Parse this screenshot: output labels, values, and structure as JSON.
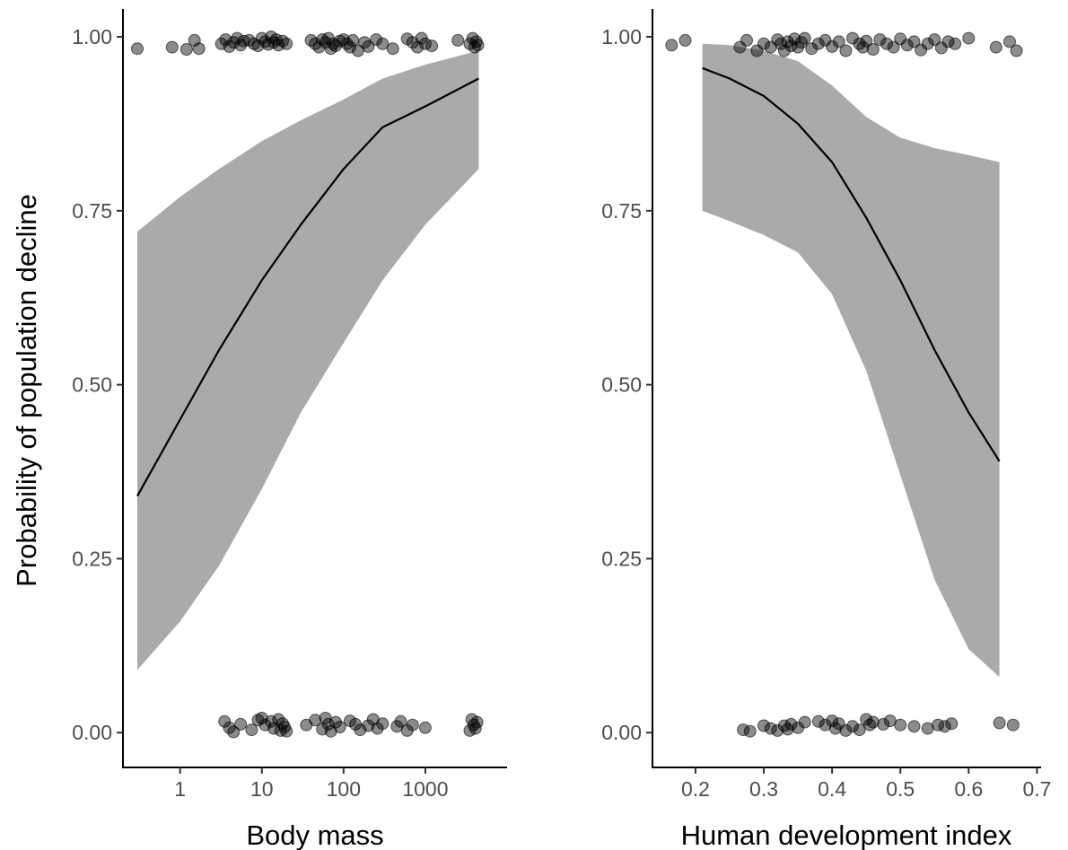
{
  "chart_data": [
    {
      "type": "line",
      "xlabel": "Body mass",
      "ylabel": "Probability of population decline",
      "x_scale": "log10",
      "xlim": [
        0.2,
        10000
      ],
      "ylim": [
        -0.05,
        1.04
      ],
      "grid": false,
      "x_ticks": [
        1,
        10,
        100,
        1000
      ],
      "x_tick_labels": [
        "1",
        "10",
        "100",
        "1000"
      ],
      "y_ticks": [
        0,
        0.25,
        0.5,
        0.75,
        1
      ],
      "y_tick_labels": [
        "0.00",
        "0.25",
        "0.50",
        "0.75",
        "1.00"
      ],
      "series": [
        {
          "x": [
            0.3,
            1,
            3,
            10,
            30,
            100,
            300,
            1000,
            4500
          ],
          "y": [
            0.34,
            0.45,
            0.55,
            0.65,
            0.73,
            0.81,
            0.87,
            0.9,
            0.94
          ],
          "lower": [
            0.09,
            0.16,
            0.24,
            0.35,
            0.46,
            0.56,
            0.65,
            0.73,
            0.81
          ],
          "upper": [
            0.72,
            0.77,
            0.81,
            0.85,
            0.88,
            0.91,
            0.94,
            0.96,
            0.98
          ]
        }
      ],
      "points_y1": {
        "x": [
          0.3,
          0.8,
          1.2,
          1.5,
          1.7,
          3.2,
          3.6,
          4,
          4.5,
          5,
          5.5,
          6,
          7,
          8,
          9,
          10,
          11,
          12,
          13,
          14,
          15,
          16,
          18,
          20,
          40,
          45,
          50,
          55,
          60,
          65,
          70,
          75,
          80,
          90,
          100,
          110,
          120,
          130,
          150,
          180,
          200,
          250,
          300,
          400,
          600,
          700,
          800,
          900,
          1000,
          1200,
          2500,
          3500,
          3800,
          4000,
          4200,
          4400
        ],
        "y": [
          0.983,
          0.985,
          0.982,
          0.995,
          0.983,
          0.99,
          0.996,
          0.986,
          0.992,
          0.998,
          0.988,
          0.994,
          0.995,
          0.99,
          0.987,
          0.998,
          0.993,
          0.989,
          1,
          0.992,
          0.996,
          0.988,
          0.994,
          0.99,
          0.995,
          0.99,
          0.985,
          0.996,
          0.992,
          0.998,
          0.983,
          0.99,
          0.987,
          0.994,
          0.996,
          0.99,
          0.985,
          0.995,
          0.98,
          0.992,
          0.986,
          0.996,
          0.99,
          0.983,
          0.997,
          0.992,
          0.985,
          0.998,
          0.99,
          0.987,
          0.995,
          0.99,
          0.998,
          0.985,
          0.993,
          0.988
        ]
      },
      "points_y0": {
        "x": [
          3.5,
          4,
          4.5,
          5.5,
          7.5,
          9,
          10,
          11,
          13,
          14,
          16,
          17,
          18,
          19,
          20,
          35,
          45,
          55,
          60,
          65,
          70,
          80,
          90,
          120,
          140,
          160,
          200,
          230,
          260,
          300,
          450,
          500,
          600,
          700,
          1000,
          3500,
          3700,
          3900,
          4100,
          4300
        ],
        "y": [
          0.016,
          0.007,
          0.001,
          0.012,
          0.004,
          0.018,
          0.021,
          0.011,
          0.016,
          0.006,
          0.019,
          0.003,
          0.013,
          0.008,
          0.002,
          0.011,
          0.018,
          0.005,
          0.021,
          0.012,
          0.002,
          0.015,
          0.008,
          0.017,
          0.012,
          0.004,
          0.01,
          0.019,
          0.006,
          0.013,
          0.009,
          0.016,
          0.003,
          0.011,
          0.007,
          0.003,
          0.019,
          0.011,
          0.006,
          0.015
        ]
      }
    },
    {
      "type": "line",
      "xlabel": "Human development index",
      "ylabel": "",
      "x_scale": "linear",
      "xlim": [
        0.137,
        0.706
      ],
      "ylim": [
        -0.05,
        1.04
      ],
      "grid": false,
      "x_ticks": [
        0.2,
        0.3,
        0.4,
        0.5,
        0.6,
        0.7
      ],
      "x_tick_labels": [
        "0.2",
        "0.3",
        "0.4",
        "0.5",
        "0.6",
        "0.7"
      ],
      "y_ticks": [
        0,
        0.25,
        0.5,
        0.75,
        1
      ],
      "y_tick_labels": [
        "0.00",
        "0.25",
        "0.50",
        "0.75",
        "1.00"
      ],
      "series": [
        {
          "x": [
            0.21,
            0.25,
            0.3,
            0.35,
            0.4,
            0.45,
            0.5,
            0.55,
            0.6,
            0.645
          ],
          "y": [
            0.955,
            0.94,
            0.915,
            0.875,
            0.82,
            0.74,
            0.65,
            0.55,
            0.46,
            0.39
          ],
          "lower": [
            0.75,
            0.735,
            0.715,
            0.69,
            0.63,
            0.52,
            0.37,
            0.22,
            0.12,
            0.08
          ],
          "upper": [
            0.99,
            0.988,
            0.98,
            0.965,
            0.93,
            0.885,
            0.855,
            0.84,
            0.83,
            0.82
          ]
        }
      ],
      "points_y1": {
        "x": [
          0.165,
          0.185,
          0.265,
          0.275,
          0.29,
          0.3,
          0.31,
          0.32,
          0.325,
          0.33,
          0.335,
          0.34,
          0.345,
          0.35,
          0.355,
          0.36,
          0.37,
          0.38,
          0.39,
          0.4,
          0.41,
          0.42,
          0.43,
          0.44,
          0.445,
          0.45,
          0.46,
          0.47,
          0.48,
          0.49,
          0.5,
          0.51,
          0.52,
          0.53,
          0.54,
          0.55,
          0.56,
          0.57,
          0.58,
          0.6,
          0.64,
          0.66,
          0.67
        ],
        "y": [
          0.988,
          0.995,
          0.985,
          0.995,
          0.98,
          0.99,
          0.985,
          0.996,
          0.99,
          0.98,
          0.993,
          0.987,
          0.997,
          0.985,
          0.992,
          0.998,
          0.983,
          0.99,
          0.995,
          0.986,
          0.993,
          0.98,
          0.998,
          0.99,
          0.985,
          0.994,
          0.982,
          0.996,
          0.99,
          0.985,
          0.997,
          0.988,
          0.993,
          0.981,
          0.99,
          0.996,
          0.984,
          0.993,
          0.99,
          0.998,
          0.985,
          0.993,
          0.98
        ]
      },
      "points_y0": {
        "x": [
          0.27,
          0.28,
          0.3,
          0.31,
          0.32,
          0.33,
          0.335,
          0.34,
          0.35,
          0.36,
          0.38,
          0.39,
          0.4,
          0.405,
          0.41,
          0.42,
          0.43,
          0.44,
          0.45,
          0.455,
          0.46,
          0.475,
          0.485,
          0.5,
          0.52,
          0.54,
          0.555,
          0.565,
          0.575,
          0.645,
          0.665
        ],
        "y": [
          0.004,
          0.002,
          0.01,
          0.006,
          0.003,
          0.01,
          0.005,
          0.012,
          0.007,
          0.015,
          0.016,
          0.011,
          0.017,
          0.006,
          0.013,
          0.003,
          0.009,
          0.004,
          0.019,
          0.011,
          0.015,
          0.012,
          0.017,
          0.011,
          0.009,
          0.006,
          0.011,
          0.009,
          0.013,
          0.014,
          0.011
        ]
      }
    }
  ]
}
